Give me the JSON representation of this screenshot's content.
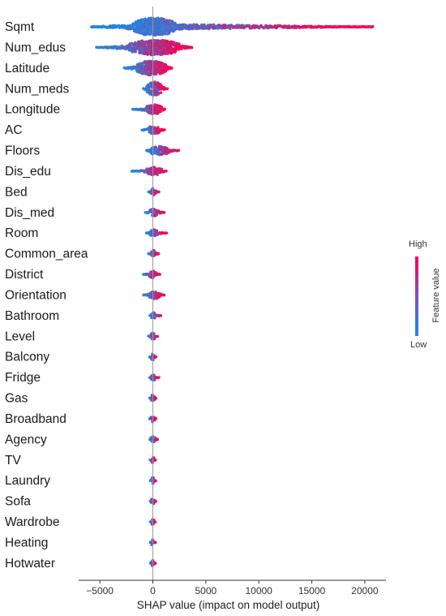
{
  "chart_data": {
    "type": "scatter",
    "subtype": "shap-beeswarm-summary",
    "title": "",
    "xlabel": "SHAP value (impact on model output)",
    "ylabel": "",
    "xlim": [
      -7000,
      22000
    ],
    "xticks": [
      -5000,
      0,
      5000,
      10000,
      15000,
      20000
    ],
    "xtick_labels": [
      "−5000",
      "0",
      "5000",
      "10000",
      "15000",
      "20000"
    ],
    "grid": false,
    "colorbar": {
      "label": "Feature value",
      "high": "High",
      "low": "Low",
      "low_color": "#1e88e5",
      "high_color": "#ff0052"
    },
    "features": [
      {
        "name": "Sqmt",
        "min": -5800,
        "max": 20800,
        "core": [
          -1900,
          2200
        ],
        "max_width": 1.0,
        "skew_low": 0.45
      },
      {
        "name": "Num_edus",
        "min": -5300,
        "max": 3700,
        "core": [
          -2300,
          2600
        ],
        "max_width": 0.85,
        "skew_low": 0.55
      },
      {
        "name": "Latitude",
        "min": -2700,
        "max": 1800,
        "core": [
          -1600,
          1300
        ],
        "max_width": 0.8,
        "skew_low": 0.5
      },
      {
        "name": "Num_meds",
        "min": -900,
        "max": 1400,
        "core": [
          -600,
          900
        ],
        "max_width": 0.75,
        "skew_low": 0.5
      },
      {
        "name": "Longitude",
        "min": -1900,
        "max": 1200,
        "core": [
          -700,
          900
        ],
        "max_width": 0.55,
        "skew_low": 0.5
      },
      {
        "name": "AC",
        "min": -1000,
        "max": 1100,
        "core": [
          -500,
          700
        ],
        "max_width": 0.45,
        "skew_low": 0.5
      },
      {
        "name": "Floors",
        "min": -600,
        "max": 2500,
        "core": [
          -400,
          1600
        ],
        "max_width": 0.5,
        "skew_low": 0.5
      },
      {
        "name": "Dis_edu",
        "min": -2000,
        "max": 1300,
        "core": [
          -700,
          900
        ],
        "max_width": 0.45,
        "skew_low": 0.5
      },
      {
        "name": "Bed",
        "min": -400,
        "max": 600,
        "core": [
          -250,
          300
        ],
        "max_width": 0.4,
        "skew_low": 0.5
      },
      {
        "name": "Dis_med",
        "min": -700,
        "max": 1100,
        "core": [
          -400,
          600
        ],
        "max_width": 0.4,
        "skew_low": 0.5
      },
      {
        "name": "Room",
        "min": -600,
        "max": 1300,
        "core": [
          -300,
          500
        ],
        "max_width": 0.4,
        "skew_low": 0.5
      },
      {
        "name": "Common_area",
        "min": -400,
        "max": 600,
        "core": [
          -250,
          350
        ],
        "max_width": 0.4,
        "skew_low": 0.5
      },
      {
        "name": "District",
        "min": -900,
        "max": 700,
        "core": [
          -400,
          400
        ],
        "max_width": 0.4,
        "skew_low": 0.5
      },
      {
        "name": "Orientation",
        "min": -900,
        "max": 1100,
        "core": [
          -400,
          700
        ],
        "max_width": 0.45,
        "skew_low": 0.5
      },
      {
        "name": "Bathroom",
        "min": -300,
        "max": 800,
        "core": [
          -200,
          300
        ],
        "max_width": 0.35,
        "skew_low": 0.5
      },
      {
        "name": "Level",
        "min": -400,
        "max": 500,
        "core": [
          -250,
          250
        ],
        "max_width": 0.4,
        "skew_low": 0.5
      },
      {
        "name": "Balcony",
        "min": -300,
        "max": 300,
        "core": [
          -200,
          200
        ],
        "max_width": 0.35,
        "skew_low": 0.5
      },
      {
        "name": "Fridge",
        "min": -300,
        "max": 600,
        "core": [
          -200,
          250
        ],
        "max_width": 0.35,
        "skew_low": 0.5
      },
      {
        "name": "Gas",
        "min": -300,
        "max": 300,
        "core": [
          -200,
          200
        ],
        "max_width": 0.35,
        "skew_low": 0.5
      },
      {
        "name": "Broadband",
        "min": -300,
        "max": 300,
        "core": [
          -200,
          200
        ],
        "max_width": 0.35,
        "skew_low": 0.5
      },
      {
        "name": "Agency",
        "min": -300,
        "max": 500,
        "core": [
          -200,
          250
        ],
        "max_width": 0.35,
        "skew_low": 0.5
      },
      {
        "name": "TV",
        "min": -250,
        "max": 250,
        "core": [
          -150,
          150
        ],
        "max_width": 0.35,
        "skew_low": 0.5
      },
      {
        "name": "Laundry",
        "min": -250,
        "max": 300,
        "core": [
          -150,
          150
        ],
        "max_width": 0.35,
        "skew_low": 0.5
      },
      {
        "name": "Sofa",
        "min": -250,
        "max": 300,
        "core": [
          -150,
          150
        ],
        "max_width": 0.35,
        "skew_low": 0.5
      },
      {
        "name": "Wardrobe",
        "min": -250,
        "max": 250,
        "core": [
          -150,
          150
        ],
        "max_width": 0.35,
        "skew_low": 0.5
      },
      {
        "name": "Heating",
        "min": -250,
        "max": 250,
        "core": [
          -150,
          150
        ],
        "max_width": 0.35,
        "skew_low": 0.5
      },
      {
        "name": "Hotwater",
        "min": -250,
        "max": 250,
        "core": [
          -150,
          150
        ],
        "max_width": 0.35,
        "skew_low": 0.5
      }
    ]
  }
}
